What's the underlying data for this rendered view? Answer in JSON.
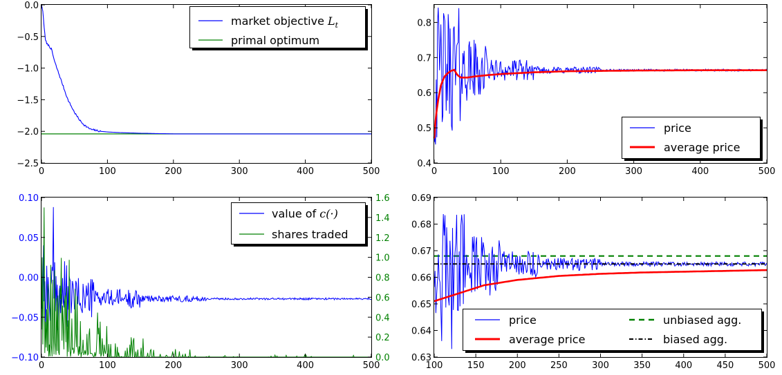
{
  "chart_data": [
    {
      "id": "panel-top-left",
      "type": "line",
      "xlim": [
        0,
        500
      ],
      "ylim": [
        -2.5,
        0.0
      ],
      "xticks": [
        "0",
        "100",
        "200",
        "300",
        "400",
        "500"
      ],
      "yticks": [
        "0.0",
        "−0.5",
        "−1.0",
        "−1.5",
        "−2.0",
        "−2.5"
      ],
      "legend_position": "top-right",
      "series": [
        {
          "name": "market objective Lt",
          "color": "#0000ff",
          "x": [
            0,
            2,
            4,
            6,
            8,
            10,
            15,
            20,
            25,
            30,
            35,
            40,
            45,
            50,
            55,
            60,
            65,
            70,
            75,
            80,
            90,
            100,
            120,
            150,
            200,
            300,
            400,
            500
          ],
          "y": [
            0.0,
            -0.1,
            -0.35,
            -0.55,
            -0.62,
            -0.63,
            -0.7,
            -0.9,
            -1.05,
            -1.2,
            -1.35,
            -1.5,
            -1.6,
            -1.7,
            -1.78,
            -1.85,
            -1.9,
            -1.94,
            -1.97,
            -1.98,
            -2.0,
            -2.01,
            -2.02,
            -2.03,
            -2.04,
            -2.04,
            -2.04,
            -2.04
          ]
        },
        {
          "name": "primal optimum",
          "color": "#008000",
          "x": [
            0,
            500
          ],
          "y": [
            -2.04,
            -2.04
          ]
        }
      ]
    },
    {
      "id": "panel-top-right",
      "type": "line",
      "xlim": [
        0,
        500
      ],
      "ylim": [
        0.4,
        0.85
      ],
      "xticks": [
        "0",
        "100",
        "200",
        "300",
        "400",
        "500"
      ],
      "yticks": [
        "0.4",
        "0.5",
        "0.6",
        "0.7",
        "0.8"
      ],
      "legend_position": "bottom-right",
      "series": [
        {
          "name": "price",
          "color": "#0000ff",
          "x": [
            0,
            500
          ],
          "y": [
            0.45,
            0.665
          ]
        },
        {
          "name": "average price",
          "color": "#ff0000",
          "x": [
            0,
            2,
            5,
            10,
            15,
            20,
            25,
            30,
            35,
            40,
            50,
            60,
            80,
            100,
            150,
            200,
            300,
            400,
            500
          ],
          "y": [
            0.47,
            0.52,
            0.57,
            0.62,
            0.645,
            0.655,
            0.662,
            0.665,
            0.65,
            0.643,
            0.643,
            0.646,
            0.65,
            0.653,
            0.658,
            0.661,
            0.663,
            0.664,
            0.664
          ]
        }
      ]
    },
    {
      "id": "panel-bottom-left",
      "type": "line",
      "xlim": [
        0,
        500
      ],
      "ylim": [
        -0.1,
        0.1
      ],
      "y2lim": [
        0.0,
        1.6
      ],
      "xticks": [
        "0",
        "100",
        "200",
        "300",
        "400",
        "500"
      ],
      "yticks": [
        "0.10",
        "0.05",
        "0.00",
        "−0.05",
        "−0.10"
      ],
      "y2ticks": [
        "1.6",
        "1.4",
        "1.2",
        "1.0",
        "0.8",
        "0.6",
        "0.4",
        "0.2",
        "0.0"
      ],
      "legend_position": "top-right",
      "series": [
        {
          "name": "value of c(·)",
          "color": "#0000ff",
          "axis": "left",
          "x": [
            0,
            500
          ],
          "y": [
            0.0,
            -0.027
          ]
        },
        {
          "name": "shares traded",
          "color": "#008000",
          "axis": "right",
          "x": [
            0,
            500
          ],
          "y": [
            1.0,
            0.0
          ]
        }
      ]
    },
    {
      "id": "panel-bottom-right",
      "type": "line",
      "xlim": [
        100,
        500
      ],
      "ylim": [
        0.63,
        0.69
      ],
      "xticks": [
        "100",
        "150",
        "200",
        "250",
        "300",
        "350",
        "400",
        "450",
        "500"
      ],
      "yticks": [
        "0.69",
        "0.68",
        "0.67",
        "0.66",
        "0.65",
        "0.64",
        "0.63"
      ],
      "legend_position": "bottom",
      "series": [
        {
          "name": "price",
          "color": "#0000ff",
          "x": [
            100,
            500
          ],
          "y": [
            0.66,
            0.665
          ]
        },
        {
          "name": "average price",
          "color": "#ff0000",
          "x": [
            100,
            120,
            140,
            160,
            180,
            200,
            250,
            300,
            350,
            400,
            450,
            500
          ],
          "y": [
            0.651,
            0.653,
            0.655,
            0.657,
            0.658,
            0.659,
            0.6605,
            0.6613,
            0.6618,
            0.6621,
            0.6624,
            0.6627
          ]
        },
        {
          "name": "unbiased agg.",
          "color": "#008000",
          "x": [
            100,
            500
          ],
          "y": [
            0.668,
            0.668
          ]
        },
        {
          "name": "biased agg.",
          "color": "#000000",
          "x": [
            100,
            500
          ],
          "y": [
            0.665,
            0.665
          ]
        }
      ]
    }
  ],
  "legends": {
    "tl": {
      "item1_text": "market objective ",
      "item1_math": "L",
      "item1_sub": "t",
      "item2": "primal optimum"
    },
    "tr": {
      "item1": "price",
      "item2": "average price"
    },
    "bl": {
      "item1_text": "value of ",
      "item1_math": "c(·)",
      "item2": "shares traded"
    },
    "br": {
      "item1": "price",
      "item2": "average price",
      "item3": "unbiased agg.",
      "item4": "biased agg."
    }
  },
  "colors": {
    "blue": "#0000ff",
    "green": "#008000",
    "red": "#ff0000",
    "black": "#000000",
    "left_axis_blue": "#0000ff",
    "right_axis_green": "#008000"
  }
}
